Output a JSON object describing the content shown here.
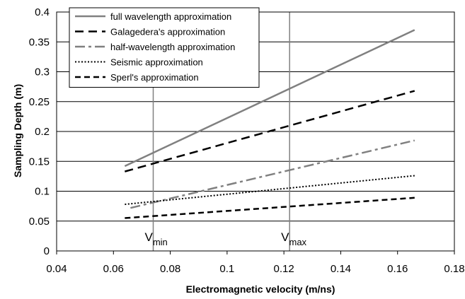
{
  "chart_data": {
    "type": "line",
    "title": "",
    "xlabel": "Electromagnetic velocity (m/ns)",
    "ylabel": "Sampling Depth (m)",
    "xlim": [
      0.04,
      0.18
    ],
    "ylim": [
      0,
      0.4
    ],
    "x_ticks": [
      "0.04",
      "0.06",
      "0.08",
      "0.1",
      "0.12",
      "0.14",
      "0.16",
      "0.18"
    ],
    "y_ticks": [
      "0",
      "0.05",
      "0.1",
      "0.15",
      "0.2",
      "0.25",
      "0.3",
      "0.35",
      "0.4"
    ],
    "grid": "horizontal",
    "legend_position": "top-left",
    "series": [
      {
        "name": "full wavelength approximation",
        "x": [
          0.064,
          0.166
        ],
        "values": [
          0.142,
          0.37
        ],
        "color": "#808080",
        "style": "solid"
      },
      {
        "name": "Galagedera's approximation",
        "x": [
          0.064,
          0.166
        ],
        "values": [
          0.133,
          0.268
        ],
        "color": "#000000",
        "style": "dashed"
      },
      {
        "name": "half-wavelength approximation",
        "x": [
          0.066,
          0.166
        ],
        "values": [
          0.072,
          0.185
        ],
        "color": "#808080",
        "style": "dashdot"
      },
      {
        "name": "Seismic approximation",
        "x": [
          0.064,
          0.166
        ],
        "values": [
          0.078,
          0.126
        ],
        "color": "#000000",
        "style": "dotted"
      },
      {
        "name": "Sperl's approximation",
        "x": [
          0.064,
          0.166
        ],
        "values": [
          0.055,
          0.089
        ],
        "color": "#000000",
        "style": "dashed-short"
      }
    ],
    "annotations": [
      {
        "label": "V",
        "sub": "min",
        "x": 0.074
      },
      {
        "label": "V",
        "sub": "max",
        "x": 0.122
      }
    ]
  }
}
